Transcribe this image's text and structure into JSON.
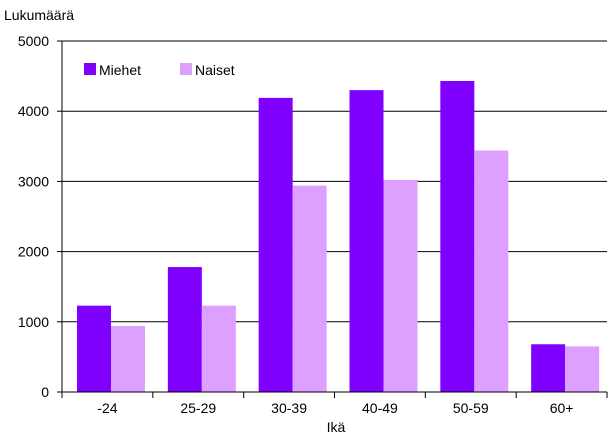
{
  "chart_data": {
    "type": "bar",
    "ylabel": "Lukumäärä",
    "xlabel": "Ikä",
    "categories": [
      "-24",
      "25-29",
      "30-39",
      "40-49",
      "50-59",
      "60+"
    ],
    "series": [
      {
        "name": "Miehet",
        "values": [
          1230,
          1780,
          4190,
          4300,
          4430,
          680
        ],
        "color": "#7f00ff"
      },
      {
        "name": "Naiset",
        "values": [
          940,
          1230,
          2940,
          3020,
          3440,
          650
        ],
        "color": "#dda0ff"
      }
    ],
    "ylim": [
      0,
      5000
    ],
    "yticks": [
      0,
      1000,
      2000,
      3000,
      4000,
      5000
    ],
    "grid": true,
    "legend_position": "top-left"
  }
}
